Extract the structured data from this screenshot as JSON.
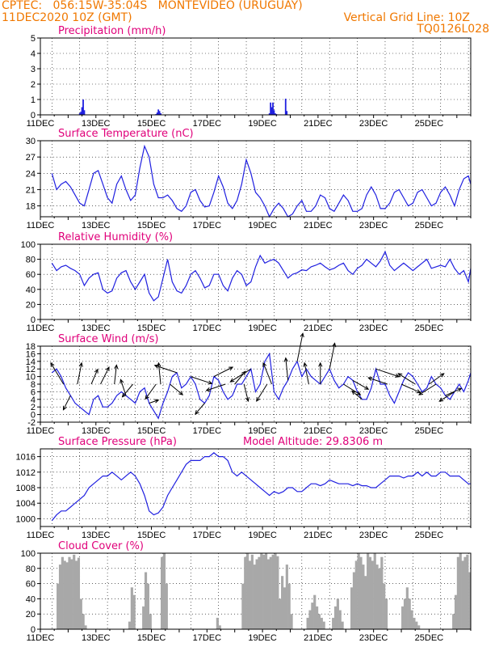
{
  "header": {
    "line1_left": "CPTEC:   056:15W-35:04S   MONTEVIDEO (URUGUAY)",
    "line2_left": "11DEC2020 10Z (GMT)",
    "line2_right": "Vertical Grid Line: 10Z",
    "line3_right": "TQ0126L028"
  },
  "colors": {
    "header": "#f07800",
    "title": "#e0007a",
    "line": "#2020e0",
    "bar": "#a8a8a8",
    "arrow": "#000000"
  },
  "chart_data": [
    {
      "id": "precip",
      "type": "bar",
      "title": "Precipitation (mm/h)",
      "ylim": [
        0,
        5
      ],
      "yticks": [
        0,
        1,
        2,
        3,
        4,
        5
      ],
      "x_dates": [
        "11DEC",
        "13DEC",
        "15DEC",
        "17DEC",
        "19DEC",
        "21DEC",
        "23DEC",
        "25DEC"
      ],
      "x_unit": "hours since 11DEC 00Z",
      "x": [
        34,
        35,
        36,
        37,
        38,
        100,
        101,
        102,
        103,
        103.8,
        104,
        198,
        199,
        200,
        201,
        202,
        203,
        204,
        212,
        213
      ],
      "values": [
        0.1,
        0.2,
        0.5,
        1.0,
        0.3,
        0.05,
        0.15,
        0.35,
        0.25,
        0.1,
        0.1,
        0.1,
        0.8,
        0.5,
        0.8,
        0.3,
        0.1,
        0.05,
        1.05,
        0.25
      ]
    },
    {
      "id": "temp",
      "type": "line",
      "title": "Surface Temperature (nC)",
      "ylim": [
        16,
        30
      ],
      "yticks": [
        18,
        21,
        24,
        27,
        30
      ],
      "x_dates": [
        "11DEC",
        "13DEC",
        "15DEC",
        "17DEC",
        "19DEC",
        "21DEC",
        "23DEC",
        "25DEC"
      ],
      "x": [
        10,
        14,
        18,
        22,
        26,
        30,
        34,
        38,
        42,
        46,
        50,
        54,
        58,
        62,
        66,
        70,
        74,
        78,
        82,
        86,
        90,
        94,
        98,
        102,
        106,
        110,
        114,
        118,
        122,
        126,
        130,
        134,
        138,
        142,
        146,
        150,
        154,
        158,
        162,
        166,
        170,
        174,
        178,
        182,
        186,
        190,
        194,
        198,
        202,
        206,
        210,
        214,
        218,
        222,
        226,
        230,
        234,
        238,
        242,
        246,
        250,
        254,
        258,
        262,
        266,
        270,
        274,
        278,
        282,
        286,
        290,
        294,
        298,
        302,
        306,
        310,
        314,
        318,
        322,
        326,
        330,
        334,
        338,
        342,
        346,
        350,
        354,
        358,
        362,
        366,
        370,
        372
      ],
      "values": [
        24,
        21,
        22,
        22.5,
        21.5,
        20,
        18.5,
        18,
        21,
        24,
        24.5,
        22,
        19.5,
        18.5,
        22,
        23.5,
        21,
        19,
        20,
        25,
        29,
        27,
        22,
        19.5,
        19.5,
        20,
        19,
        17.5,
        17,
        18,
        20.5,
        21,
        19,
        17.8,
        18,
        20.5,
        23.5,
        21.5,
        18.5,
        17.5,
        19,
        22,
        26.5,
        24,
        20.5,
        19.5,
        18,
        16,
        17.5,
        18.5,
        17.5,
        16,
        16.5,
        18,
        19,
        17,
        17,
        18,
        20,
        19.5,
        17.5,
        17,
        18.5,
        20,
        19,
        17,
        17,
        17.5,
        20,
        21.5,
        20,
        17.5,
        17.5,
        18.5,
        20.5,
        21,
        19.5,
        18,
        18.5,
        20.5,
        21,
        19.5,
        18,
        18.5,
        20.5,
        21.5,
        20,
        18,
        21,
        23,
        23.5,
        22
      ]
    },
    {
      "id": "rh",
      "type": "line",
      "title": "Relative Humidity (%)",
      "ylim": [
        0,
        100
      ],
      "yticks": [
        0,
        20,
        40,
        60,
        80,
        100
      ],
      "x_dates": [
        "11DEC",
        "13DEC",
        "15DEC",
        "17DEC",
        "19DEC",
        "21DEC",
        "23DEC",
        "25DEC"
      ],
      "x": [
        10,
        14,
        18,
        22,
        26,
        30,
        34,
        38,
        42,
        46,
        50,
        54,
        58,
        62,
        66,
        70,
        74,
        78,
        82,
        86,
        90,
        94,
        98,
        102,
        106,
        110,
        114,
        118,
        122,
        126,
        130,
        134,
        138,
        142,
        146,
        150,
        154,
        158,
        162,
        166,
        170,
        174,
        178,
        182,
        186,
        190,
        194,
        198,
        202,
        206,
        210,
        214,
        218,
        222,
        226,
        230,
        234,
        238,
        242,
        246,
        250,
        254,
        258,
        262,
        266,
        270,
        274,
        278,
        282,
        286,
        290,
        294,
        298,
        302,
        306,
        310,
        314,
        318,
        322,
        326,
        330,
        334,
        338,
        342,
        346,
        350,
        354,
        358,
        362,
        366,
        370,
        372
      ],
      "values": [
        75,
        65,
        70,
        72,
        68,
        65,
        60,
        45,
        55,
        60,
        62,
        40,
        35,
        38,
        55,
        62,
        65,
        50,
        40,
        50,
        60,
        35,
        25,
        30,
        55,
        80,
        50,
        38,
        35,
        45,
        60,
        65,
        55,
        42,
        45,
        60,
        60,
        45,
        38,
        55,
        65,
        60,
        45,
        50,
        70,
        85,
        75,
        78,
        80,
        75,
        65,
        55,
        60,
        62,
        66,
        65,
        70,
        72,
        75,
        70,
        66,
        68,
        72,
        75,
        65,
        60,
        68,
        72,
        80,
        75,
        70,
        78,
        90,
        72,
        65,
        70,
        75,
        70,
        65,
        70,
        75,
        80,
        68,
        70,
        72,
        70,
        80,
        68,
        60,
        65,
        50,
        68
      ]
    },
    {
      "id": "wind",
      "type": "line",
      "title": "Surface Wind (m/s)",
      "ylim": [
        -2,
        18
      ],
      "yticks": [
        -2,
        0,
        2,
        4,
        6,
        8,
        10,
        12,
        14,
        16,
        18
      ],
      "x_dates": [
        "11DEC",
        "13DEC",
        "15DEC",
        "17DEC",
        "19DEC",
        "21DEC",
        "23DEC",
        "25DEC"
      ],
      "x": [
        10,
        14,
        18,
        22,
        26,
        30,
        34,
        38,
        42,
        46,
        50,
        54,
        58,
        62,
        66,
        70,
        74,
        78,
        82,
        86,
        90,
        94,
        98,
        102,
        106,
        110,
        114,
        118,
        122,
        126,
        130,
        134,
        138,
        142,
        146,
        150,
        154,
        158,
        162,
        166,
        170,
        174,
        178,
        182,
        186,
        190,
        194,
        198,
        202,
        206,
        210,
        214,
        218,
        222,
        226,
        230,
        234,
        238,
        242,
        246,
        250,
        254,
        258,
        262,
        266,
        270,
        274,
        278,
        282,
        286,
        290,
        294,
        298,
        302,
        306,
        310,
        314,
        318,
        322,
        326,
        330,
        334,
        338,
        342,
        346,
        350,
        354,
        358,
        362,
        366,
        370,
        372
      ],
      "values": [
        11,
        12,
        10,
        7,
        5,
        3,
        2,
        1,
        0,
        4,
        5,
        2,
        2,
        3,
        5,
        6,
        5,
        4,
        3,
        6,
        7,
        3,
        1,
        -1,
        3,
        6,
        10,
        11,
        7,
        8,
        10,
        8,
        4,
        3,
        5,
        10,
        9,
        6,
        4,
        5,
        8,
        8,
        10,
        12,
        6,
        8,
        14,
        16,
        6,
        4,
        7,
        9,
        12,
        14,
        10,
        12,
        10,
        9,
        8,
        10,
        12,
        9,
        7,
        8,
        10,
        9,
        6,
        4,
        4,
        7,
        12,
        8,
        8,
        5,
        3,
        6,
        9,
        11,
        10,
        8,
        6,
        7,
        10,
        8,
        7,
        5,
        4,
        6,
        8,
        6,
        9,
        11
      ],
      "arrows": [
        {
          "x": 20,
          "dx": -0.6,
          "dy": 1.0
        },
        {
          "x": 26,
          "dx": -0.4,
          "dy": -0.8
        },
        {
          "x": 32,
          "dx": 0.2,
          "dy": 1.0
        },
        {
          "x": 44,
          "dx": 0.3,
          "dy": 0.7
        },
        {
          "x": 52,
          "dx": 0.4,
          "dy": 0.8
        },
        {
          "x": 64,
          "dx": 0.1,
          "dy": 0.9
        },
        {
          "x": 74,
          "dx": -0.3,
          "dy": 0.9
        },
        {
          "x": 80,
          "dx": -0.5,
          "dy": -0.6
        },
        {
          "x": 94,
          "dx": 0.6,
          "dy": 0.2
        },
        {
          "x": 100,
          "dx": -0.5,
          "dy": -0.7
        },
        {
          "x": 104,
          "dx": -0.1,
          "dy": 1.0
        },
        {
          "x": 112,
          "dx": 0.6,
          "dy": -0.5
        },
        {
          "x": 118,
          "dx": -0.9,
          "dy": 0.3
        },
        {
          "x": 130,
          "dx": 0.9,
          "dy": -0.3
        },
        {
          "x": 142,
          "dx": -0.6,
          "dy": -0.7
        },
        {
          "x": 150,
          "dx": 0.8,
          "dy": 0.4
        },
        {
          "x": 160,
          "dx": -0.9,
          "dy": -0.3
        },
        {
          "x": 168,
          "dx": 0.5,
          "dy": 0.6
        },
        {
          "x": 176,
          "dx": 0.2,
          "dy": -0.8
        },
        {
          "x": 182,
          "dx": -0.8,
          "dy": -0.5
        },
        {
          "x": 196,
          "dx": -0.5,
          "dy": -0.8
        },
        {
          "x": 200,
          "dx": -0.4,
          "dy": 1.0
        },
        {
          "x": 214,
          "dx": -0.1,
          "dy": 1.0
        },
        {
          "x": 222,
          "dx": 0.2,
          "dy": 1.0
        },
        {
          "x": 232,
          "dx": -0.2,
          "dy": 1.0
        },
        {
          "x": 242,
          "dx": 0.0,
          "dy": 1.0
        },
        {
          "x": 250,
          "dx": 0.2,
          "dy": 1.0
        },
        {
          "x": 262,
          "dx": 0.8,
          "dy": -0.5
        },
        {
          "x": 270,
          "dx": 0.7,
          "dy": -0.4
        },
        {
          "x": 278,
          "dx": -0.6,
          "dy": 0.5
        },
        {
          "x": 290,
          "dx": 0.9,
          "dy": -0.3
        },
        {
          "x": 300,
          "dx": -0.9,
          "dy": 0.3
        },
        {
          "x": 312,
          "dx": 0.9,
          "dy": -0.4
        },
        {
          "x": 324,
          "dx": -0.8,
          "dy": 0.5
        },
        {
          "x": 336,
          "dx": 0.7,
          "dy": 0.5
        },
        {
          "x": 342,
          "dx": -0.8,
          "dy": -0.5
        },
        {
          "x": 350,
          "dx": 0.9,
          "dy": 0.4
        },
        {
          "x": 358,
          "dx": -0.8,
          "dy": -0.5
        }
      ]
    },
    {
      "id": "press",
      "type": "line",
      "title": "Surface Pressure (hPa)",
      "note": "Model Altitude: 29.8306 m",
      "ylim": [
        998,
        1018
      ],
      "yticks": [
        1000,
        1004,
        1008,
        1012,
        1016
      ],
      "x_dates": [
        "11DEC",
        "13DEC",
        "15DEC",
        "17DEC",
        "19DEC",
        "21DEC",
        "23DEC",
        "25DEC"
      ],
      "x": [
        10,
        14,
        18,
        22,
        26,
        30,
        34,
        38,
        42,
        46,
        50,
        54,
        58,
        62,
        66,
        70,
        74,
        78,
        82,
        86,
        90,
        94,
        98,
        102,
        106,
        110,
        114,
        118,
        122,
        126,
        130,
        134,
        138,
        142,
        146,
        150,
        154,
        158,
        162,
        166,
        170,
        174,
        178,
        182,
        186,
        190,
        194,
        198,
        202,
        206,
        210,
        214,
        218,
        222,
        226,
        230,
        234,
        238,
        242,
        246,
        250,
        254,
        258,
        262,
        266,
        270,
        274,
        278,
        282,
        286,
        290,
        294,
        298,
        302,
        306,
        310,
        314,
        318,
        322,
        326,
        330,
        334,
        338,
        342,
        346,
        350,
        354,
        358,
        362,
        366,
        370,
        372
      ],
      "values": [
        999.5,
        1001,
        1002,
        1002,
        1003,
        1004,
        1005,
        1006,
        1008,
        1009,
        1010,
        1011,
        1011,
        1012,
        1011,
        1010,
        1011,
        1012,
        1011,
        1009,
        1006,
        1002,
        1001,
        1001.5,
        1003,
        1006,
        1008,
        1010,
        1012,
        1014,
        1015,
        1015,
        1015,
        1016,
        1016,
        1017,
        1016,
        1016,
        1015,
        1012,
        1011,
        1012,
        1011,
        1010,
        1009,
        1008,
        1007,
        1006,
        1007,
        1006.5,
        1007,
        1008,
        1008,
        1007,
        1007,
        1008,
        1009,
        1009,
        1008.5,
        1009,
        1010,
        1009.5,
        1009,
        1009,
        1009,
        1008.5,
        1009,
        1008.5,
        1008.5,
        1008,
        1008,
        1009,
        1010,
        1011,
        1011,
        1011,
        1010.5,
        1011,
        1011,
        1012,
        1011,
        1012,
        1011,
        1011,
        1012,
        1012,
        1011,
        1011,
        1011,
        1010,
        1009,
        1009
      ]
    },
    {
      "id": "cloud",
      "type": "bar",
      "title": "Cloud Cover (%)",
      "ylim": [
        0,
        100
      ],
      "yticks": [
        0,
        20,
        40,
        60,
        80,
        100
      ],
      "x_dates": [
        "11DEC",
        "13DEC",
        "15DEC",
        "17DEC",
        "19DEC",
        "21DEC",
        "23DEC",
        "25DEC"
      ],
      "segments": [
        {
          "x0": 14,
          "x1": 34,
          "vals": [
            60,
            85,
            95,
            90,
            88,
            95,
            92,
            98,
            90,
            94
          ]
        },
        {
          "x0": 34,
          "x1": 40,
          "vals": [
            40,
            20,
            5
          ]
        },
        {
          "x0": 76,
          "x1": 82,
          "vals": [
            10,
            55,
            45
          ]
        },
        {
          "x0": 88,
          "x1": 96,
          "vals": [
            30,
            75,
            60,
            20
          ]
        },
        {
          "x0": 104,
          "x1": 110,
          "vals": [
            95,
            100,
            60
          ]
        },
        {
          "x0": 152,
          "x1": 156,
          "vals": [
            15,
            5
          ]
        },
        {
          "x0": 174,
          "x1": 188,
          "vals": [
            60,
            95,
            100,
            90,
            98,
            85,
            92
          ]
        },
        {
          "x0": 188,
          "x1": 206,
          "vals": [
            95,
            100,
            98,
            100,
            92,
            95,
            98,
            100,
            96
          ]
        },
        {
          "x0": 206,
          "x1": 218,
          "vals": [
            40,
            70,
            55,
            85,
            60,
            20
          ]
        },
        {
          "x0": 230,
          "x1": 246,
          "vals": [
            15,
            25,
            35,
            45,
            30,
            20,
            15,
            10
          ]
        },
        {
          "x0": 252,
          "x1": 262,
          "vals": [
            15,
            30,
            40,
            25,
            10
          ]
        },
        {
          "x0": 268,
          "x1": 282,
          "vals": [
            55,
            75,
            90,
            100,
            95,
            85,
            70
          ]
        },
        {
          "x0": 282,
          "x1": 300,
          "vals": [
            100,
            95,
            90,
            100,
            85,
            80,
            95,
            60,
            40
          ]
        },
        {
          "x0": 312,
          "x1": 328,
          "vals": [
            30,
            40,
            55,
            40,
            25,
            15,
            10,
            5
          ]
        },
        {
          "x0": 356,
          "x1": 372,
          "vals": [
            20,
            45,
            95,
            100,
            90,
            95,
            98,
            75
          ]
        }
      ]
    }
  ]
}
